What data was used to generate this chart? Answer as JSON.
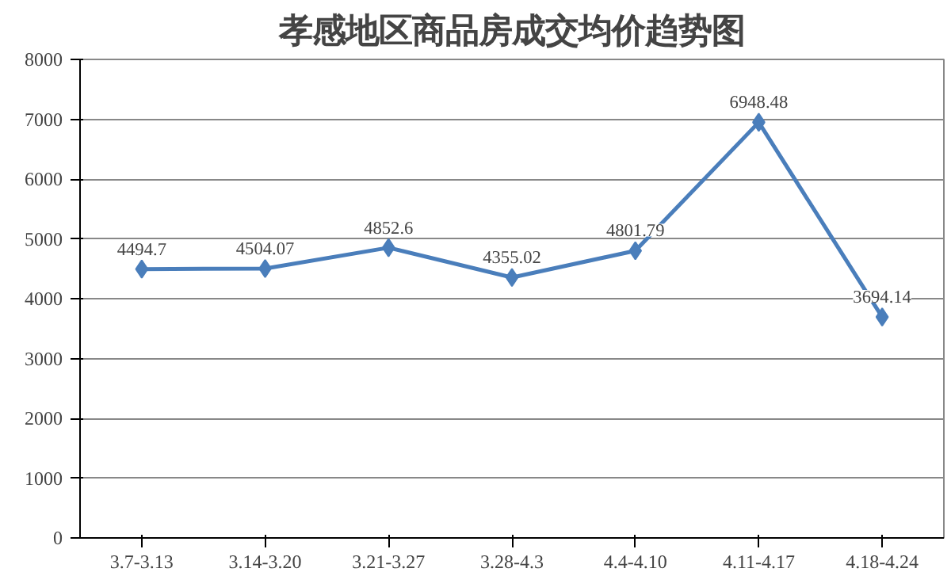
{
  "chart_data": {
    "type": "line",
    "title": "孝感地区商品房成交均价趋势图",
    "categories": [
      "3.7-3.13",
      "3.14-3.20",
      "3.21-3.27",
      "3.28-4.3",
      "4.4-4.10",
      "4.11-4.17",
      "4.18-4.24"
    ],
    "series": [
      {
        "color": "#4a7ebb",
        "values": [
          4494.7,
          4504.07,
          4852.6,
          4355.02,
          4801.79,
          6948.48,
          3694.14
        ]
      }
    ],
    "ylim": [
      0,
      8000
    ],
    "yticks": [
      0,
      1000,
      2000,
      3000,
      4000,
      5000,
      6000,
      7000,
      8000
    ],
    "grid": "y",
    "marker": "diamond",
    "line_style": "solid",
    "data_labels": true
  }
}
